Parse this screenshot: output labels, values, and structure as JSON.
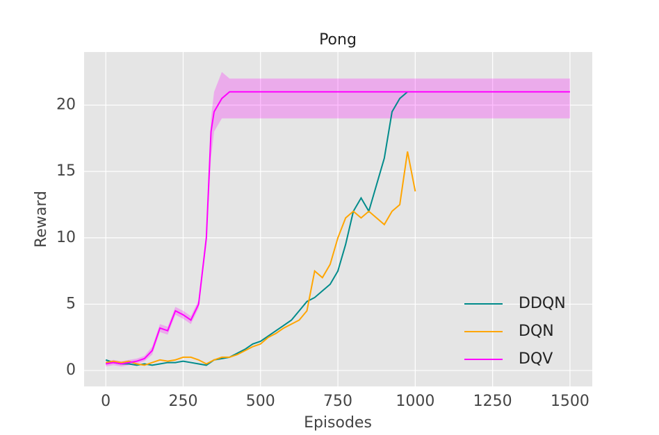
{
  "chart_data": {
    "type": "line",
    "title": "Pong",
    "xlabel": "Episodes",
    "ylabel": "Reward",
    "xlim": [
      -70,
      1572
    ],
    "ylim": [
      -1.2,
      24
    ],
    "xticks": [
      0,
      250,
      500,
      750,
      1000,
      1250,
      1500
    ],
    "yticks": [
      0,
      5,
      10,
      15,
      20
    ],
    "grid": true,
    "legend": "lower right",
    "series": [
      {
        "name": "DDQN",
        "color": "#008b8b",
        "x": [
          0,
          25,
          50,
          75,
          100,
          125,
          150,
          175,
          200,
          225,
          250,
          275,
          300,
          325,
          350,
          375,
          400,
          425,
          450,
          475,
          500,
          525,
          550,
          575,
          600,
          625,
          650,
          675,
          700,
          725,
          750,
          775,
          800,
          825,
          850,
          875,
          900,
          925,
          950,
          975
        ],
        "values": [
          0.8,
          0.6,
          0.5,
          0.5,
          0.4,
          0.5,
          0.4,
          0.5,
          0.6,
          0.6,
          0.7,
          0.6,
          0.5,
          0.4,
          0.8,
          0.9,
          1.0,
          1.3,
          1.6,
          2.0,
          2.2,
          2.6,
          3.0,
          3.4,
          3.8,
          4.5,
          5.2,
          5.5,
          6.0,
          6.5,
          7.5,
          9.5,
          12,
          13,
          12,
          14,
          16,
          19.5,
          20.5,
          21
        ]
      },
      {
        "name": "DQN",
        "color": "#ffa500",
        "x": [
          0,
          25,
          50,
          75,
          100,
          125,
          150,
          175,
          200,
          225,
          250,
          275,
          300,
          325,
          350,
          375,
          400,
          425,
          450,
          475,
          500,
          525,
          550,
          575,
          600,
          625,
          650,
          675,
          700,
          725,
          750,
          775,
          800,
          825,
          850,
          875,
          900,
          925,
          950,
          975,
          1000
        ],
        "values": [
          0.6,
          0.7,
          0.6,
          0.7,
          0.5,
          0.4,
          0.6,
          0.8,
          0.7,
          0.8,
          1.0,
          1.0,
          0.8,
          0.5,
          0.8,
          1.0,
          1.0,
          1.2,
          1.5,
          1.8,
          2.0,
          2.5,
          2.8,
          3.2,
          3.5,
          3.8,
          4.5,
          7.5,
          7,
          8,
          10,
          11.5,
          12,
          11.5,
          12,
          11.5,
          11,
          12,
          12.5,
          16.5,
          13.5
        ]
      },
      {
        "name": "DQV",
        "color": "#ff00ff",
        "x": [
          0,
          25,
          50,
          75,
          100,
          125,
          150,
          175,
          200,
          225,
          250,
          275,
          300,
          325,
          340,
          350,
          375,
          400,
          425,
          1500
        ],
        "values": [
          0.5,
          0.6,
          0.5,
          0.6,
          0.7,
          0.9,
          1.5,
          3.2,
          3.0,
          4.5,
          4.2,
          3.8,
          5.0,
          10,
          18,
          19.5,
          20.5,
          21,
          21,
          21
        ],
        "lower": [
          0.3,
          0.4,
          0.3,
          0.4,
          0.5,
          0.7,
          1.2,
          2.9,
          2.7,
          4.2,
          3.9,
          3.5,
          4.7,
          9.5,
          16,
          18,
          19,
          19,
          19,
          19
        ],
        "upper": [
          0.7,
          0.8,
          0.7,
          0.8,
          0.9,
          1.1,
          1.8,
          3.5,
          3.3,
          4.8,
          4.5,
          4.1,
          5.3,
          10.5,
          19,
          21,
          22.5,
          22,
          22,
          22
        ]
      }
    ]
  }
}
